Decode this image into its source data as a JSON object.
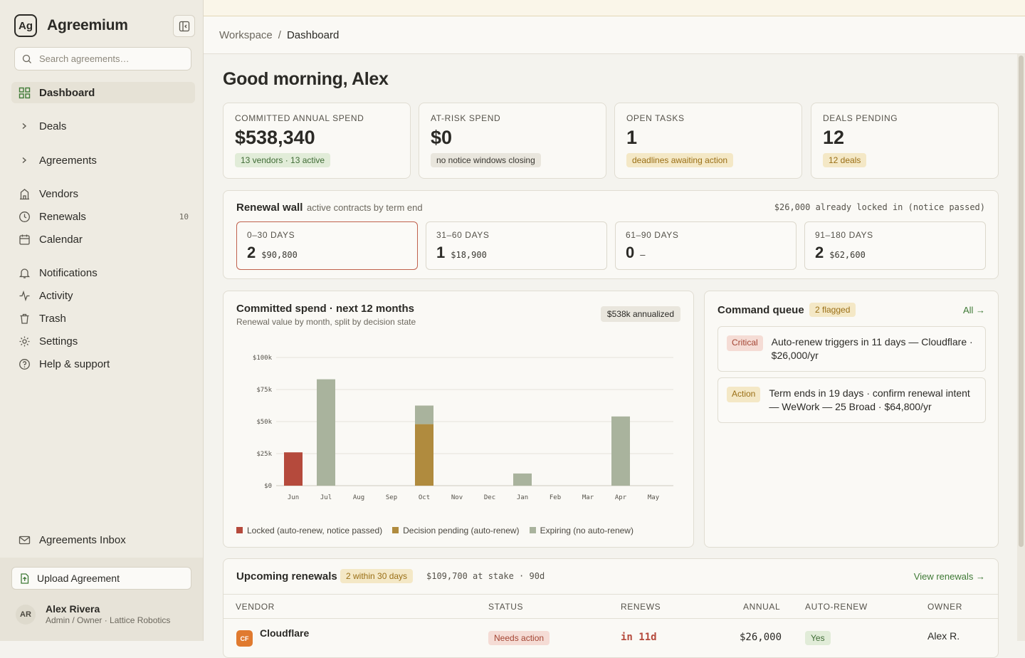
{
  "app": {
    "name": "Agreemium",
    "logo_text": "Ag"
  },
  "sidebar": {
    "search_placeholder": "Search agreements…",
    "items": [
      {
        "label": "Dashboard"
      },
      {
        "label": "Deals"
      },
      {
        "label": "Agreements"
      },
      {
        "label": "Vendors"
      },
      {
        "label": "Renewals",
        "count": "10"
      },
      {
        "label": "Calendar"
      },
      {
        "label": "Notifications"
      },
      {
        "label": "Activity"
      },
      {
        "label": "Trash"
      },
      {
        "label": "Settings"
      },
      {
        "label": "Help & support"
      },
      {
        "label": "Agreements Inbox"
      }
    ],
    "upload_label": "Upload Agreement",
    "user": {
      "initials": "AR",
      "name": "Alex Rivera",
      "role": "Admin / Owner · Lattice Robotics"
    }
  },
  "breadcrumb": {
    "parent": "Workspace",
    "sep": "/",
    "current": "Dashboard"
  },
  "greeting": "Good morning, Alex",
  "kpis": [
    {
      "label": "COMMITTED ANNUAL SPEND",
      "value": "$538,340",
      "note": "13 vendors · 13 active",
      "tone": "green"
    },
    {
      "label": "AT-RISK SPEND",
      "value": "$0",
      "note": "no notice windows closing",
      "tone": "gray"
    },
    {
      "label": "OPEN TASKS",
      "value": "1",
      "note": "deadlines awaiting action",
      "tone": "amber"
    },
    {
      "label": "DEALS PENDING",
      "value": "12",
      "note": "12 deals",
      "tone": "amber"
    }
  ],
  "renewal_wall": {
    "title": "Renewal wall",
    "subtitle": "active contracts by term end",
    "locked_note": "$26,000 already locked in (notice passed)",
    "buckets": [
      {
        "label": "0–30 DAYS",
        "count": "2",
        "amount": "$90,800"
      },
      {
        "label": "31–60 DAYS",
        "count": "1",
        "amount": "$18,900"
      },
      {
        "label": "61–90 DAYS",
        "count": "0",
        "amount": "—"
      },
      {
        "label": "91–180 DAYS",
        "count": "2",
        "amount": "$62,600"
      }
    ]
  },
  "spend_card": {
    "title": "Committed spend · next 12 months",
    "subtitle": "Renewal value by month, split by decision state",
    "badge": "$538k annualized",
    "legend": [
      "Locked (auto-renew, notice passed)",
      "Decision pending (auto-renew)",
      "Expiring (no auto-renew)"
    ]
  },
  "chart_data": {
    "type": "bar",
    "stacked": true,
    "categories": [
      "Jun",
      "Jul",
      "Aug",
      "Sep",
      "Oct",
      "Nov",
      "Dec",
      "Jan",
      "Feb",
      "Mar",
      "Apr",
      "May"
    ],
    "series": [
      {
        "name": "Locked (auto-renew, notice passed)",
        "color": "#b54a3c",
        "values": [
          26000,
          0,
          0,
          0,
          0,
          0,
          0,
          0,
          0,
          0,
          0,
          0
        ]
      },
      {
        "name": "Decision pending (auto-renew)",
        "color": "#b08b3e",
        "values": [
          0,
          0,
          0,
          0,
          48000,
          0,
          0,
          0,
          0,
          0,
          0,
          0
        ]
      },
      {
        "name": "Expiring (no auto-renew)",
        "color": "#a9b39d",
        "values": [
          0,
          83000,
          0,
          0,
          14500,
          0,
          0,
          9500,
          0,
          0,
          54000,
          0
        ]
      }
    ],
    "ylim": [
      0,
      100000
    ],
    "yticks": [
      "$0",
      "$25k",
      "$50k",
      "$75k",
      "$100k"
    ],
    "ytick_values": [
      0,
      25000,
      50000,
      75000,
      100000
    ],
    "grid": true,
    "legend_position": "bottom"
  },
  "queue": {
    "title": "Command queue",
    "flag": "2 flagged",
    "all_link": "All →",
    "items": [
      {
        "tag": "Critical",
        "text": "Auto-renew triggers in 11 days — Cloudflare · $26,000/yr"
      },
      {
        "tag": "Action",
        "text": "Term ends in 19 days · confirm renewal intent — WeWork — 25 Broad · $64,800/yr"
      }
    ]
  },
  "upcoming": {
    "title": "Upcoming renewals",
    "flag": "2 within 30 days",
    "stake": "$109,700 at stake · 90d",
    "view_link": "View renewals →",
    "columns": [
      "VENDOR",
      "STATUS",
      "RENEWS",
      "ANNUAL",
      "AUTO-RENEW",
      "OWNER"
    ],
    "rows": [
      {
        "logo": "CF",
        "vendor": "Cloudflare",
        "status": "Needs action",
        "renews": "in 11d",
        "annual": "$26,000",
        "auto_renew": "Yes",
        "owner": "Alex R."
      }
    ]
  },
  "colors": {
    "accent_green": "#3f7a36",
    "alert_red": "#b54a3c",
    "amber": "#b08b3e",
    "sage": "#a9b39d"
  }
}
